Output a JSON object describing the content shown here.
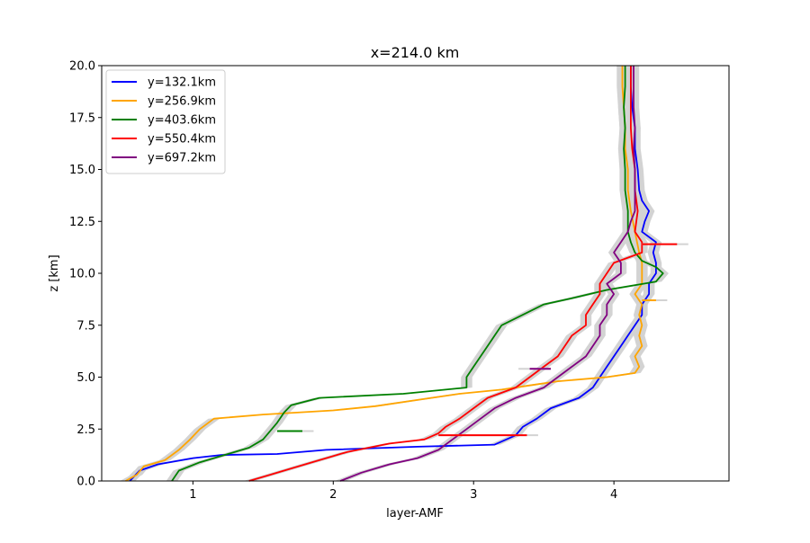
{
  "chart_data": {
    "type": "line",
    "title": "x=214.0 km",
    "xlabel": "layer-AMF",
    "ylabel": "z [km]",
    "xlim": [
      0.35,
      4.82
    ],
    "ylim": [
      0,
      20
    ],
    "xticks": [
      1,
      2,
      3,
      4
    ],
    "xtick_labels": [
      "1",
      "2",
      "3",
      "4"
    ],
    "yticks": [
      0,
      2.5,
      5,
      7.5,
      10,
      12.5,
      15,
      17.5,
      20
    ],
    "ytick_labels": [
      "0.0",
      "2.5",
      "5.0",
      "7.5",
      "10.0",
      "12.5",
      "15.0",
      "17.5",
      "20.0"
    ],
    "grid": false,
    "legend_position": "top-left",
    "band_color": "#d3d3d3",
    "series": [
      {
        "name": "y=132.1km",
        "color": "#0000ff",
        "points": [
          [
            0.55,
            0.0
          ],
          [
            0.62,
            0.5
          ],
          [
            0.75,
            0.8
          ],
          [
            1.0,
            1.1
          ],
          [
            1.2,
            1.25
          ],
          [
            1.6,
            1.3
          ],
          [
            1.95,
            1.5
          ],
          [
            2.6,
            1.65
          ],
          [
            3.15,
            1.75
          ],
          [
            3.3,
            2.2
          ],
          [
            3.35,
            2.6
          ],
          [
            3.45,
            3.0
          ],
          [
            3.55,
            3.5
          ],
          [
            3.75,
            4.0
          ],
          [
            3.85,
            4.5
          ],
          [
            3.9,
            5.0
          ],
          [
            3.95,
            5.5
          ],
          [
            4.0,
            6.0
          ],
          [
            4.05,
            6.5
          ],
          [
            4.1,
            7.0
          ],
          [
            4.15,
            7.5
          ],
          [
            4.2,
            8.0
          ],
          [
            4.2,
            8.5
          ],
          [
            4.25,
            9.0
          ],
          [
            4.25,
            9.5
          ],
          [
            4.3,
            10.0
          ],
          [
            4.3,
            10.5
          ],
          [
            4.28,
            11.0
          ],
          [
            4.3,
            11.5
          ],
          [
            4.2,
            12.0
          ],
          [
            4.22,
            12.5
          ],
          [
            4.25,
            13.0
          ],
          [
            4.2,
            13.5
          ],
          [
            4.18,
            14.0
          ],
          [
            4.17,
            15.0
          ],
          [
            4.15,
            16.0
          ],
          [
            4.15,
            17.0
          ],
          [
            4.13,
            18.0
          ],
          [
            4.12,
            19.0
          ],
          [
            4.12,
            20.0
          ]
        ],
        "band": 0.04
      },
      {
        "name": "y=256.9km",
        "color": "#ffa500",
        "points": [
          [
            0.52,
            0.0
          ],
          [
            0.6,
            0.3
          ],
          [
            0.65,
            0.7
          ],
          [
            0.8,
            1.0
          ],
          [
            0.9,
            1.5
          ],
          [
            0.98,
            2.0
          ],
          [
            1.05,
            2.5
          ],
          [
            1.15,
            3.0
          ],
          [
            1.5,
            3.2
          ],
          [
            2.0,
            3.4
          ],
          [
            2.3,
            3.6
          ],
          [
            2.6,
            3.9
          ],
          [
            2.9,
            4.2
          ],
          [
            3.2,
            4.4
          ],
          [
            3.4,
            4.6
          ],
          [
            3.6,
            4.8
          ],
          [
            3.95,
            5.0
          ],
          [
            4.15,
            5.2
          ],
          [
            4.18,
            5.5
          ],
          [
            4.15,
            6.0
          ],
          [
            4.2,
            6.5
          ],
          [
            4.18,
            7.0
          ],
          [
            4.2,
            7.5
          ],
          [
            4.18,
            8.0
          ],
          [
            4.2,
            8.5
          ],
          [
            4.15,
            9.0
          ],
          [
            4.2,
            9.5
          ],
          [
            4.2,
            10.0
          ],
          [
            4.2,
            10.5
          ],
          [
            4.18,
            11.0
          ],
          [
            4.15,
            12.0
          ],
          [
            4.12,
            13.0
          ],
          [
            4.1,
            14.0
          ],
          [
            4.1,
            15.0
          ],
          [
            4.08,
            16.0
          ],
          [
            4.08,
            17.0
          ],
          [
            4.07,
            18.0
          ],
          [
            4.06,
            19.0
          ],
          [
            4.06,
            20.0
          ]
        ],
        "band": 0.04
      },
      {
        "name": "y=403.6km",
        "color": "#008000",
        "points": [
          [
            0.85,
            0.0
          ],
          [
            0.9,
            0.5
          ],
          [
            1.05,
            0.9
          ],
          [
            1.25,
            1.3
          ],
          [
            1.4,
            1.6
          ],
          [
            1.5,
            2.0
          ],
          [
            1.55,
            2.4
          ],
          [
            1.6,
            2.8
          ],
          [
            1.65,
            3.3
          ],
          [
            1.7,
            3.65
          ],
          [
            1.9,
            4.0
          ],
          [
            2.5,
            4.2
          ],
          [
            2.95,
            4.5
          ],
          [
            2.95,
            5.0
          ],
          [
            3.0,
            5.5
          ],
          [
            3.05,
            6.0
          ],
          [
            3.1,
            6.5
          ],
          [
            3.15,
            7.0
          ],
          [
            3.2,
            7.5
          ],
          [
            3.35,
            8.0
          ],
          [
            3.5,
            8.5
          ],
          [
            3.7,
            8.8
          ],
          [
            3.95,
            9.2
          ],
          [
            4.3,
            9.6
          ],
          [
            4.35,
            10.0
          ],
          [
            4.3,
            10.3
          ],
          [
            4.2,
            10.6
          ],
          [
            4.15,
            11.0
          ],
          [
            4.12,
            11.5
          ],
          [
            4.1,
            12.0
          ],
          [
            4.1,
            13.0
          ],
          [
            4.08,
            14.0
          ],
          [
            4.08,
            15.0
          ],
          [
            4.07,
            16.0
          ],
          [
            4.08,
            17.0
          ],
          [
            4.07,
            18.0
          ],
          [
            4.08,
            19.0
          ],
          [
            4.08,
            20.0
          ]
        ],
        "band": 0.04
      },
      {
        "name": "y=550.4km",
        "color": "#ff0000",
        "points": [
          [
            1.4,
            0.0
          ],
          [
            1.55,
            0.3
          ],
          [
            1.7,
            0.6
          ],
          [
            1.9,
            1.0
          ],
          [
            2.1,
            1.4
          ],
          [
            2.4,
            1.8
          ],
          [
            2.65,
            2.0
          ],
          [
            2.75,
            2.3
          ],
          [
            2.8,
            2.6
          ],
          [
            2.9,
            3.0
          ],
          [
            3.0,
            3.5
          ],
          [
            3.1,
            4.0
          ],
          [
            3.3,
            4.5
          ],
          [
            3.4,
            5.0
          ],
          [
            3.5,
            5.5
          ],
          [
            3.6,
            6.0
          ],
          [
            3.65,
            6.5
          ],
          [
            3.7,
            7.0
          ],
          [
            3.8,
            7.5
          ],
          [
            3.8,
            8.0
          ],
          [
            3.85,
            8.5
          ],
          [
            3.9,
            9.0
          ],
          [
            3.9,
            9.5
          ],
          [
            3.95,
            10.0
          ],
          [
            4.0,
            10.5
          ],
          [
            4.2,
            11.0
          ],
          [
            4.2,
            11.5
          ],
          [
            4.15,
            12.0
          ],
          [
            4.17,
            13.0
          ],
          [
            4.15,
            14.0
          ],
          [
            4.15,
            15.0
          ],
          [
            4.13,
            16.0
          ],
          [
            4.12,
            17.0
          ],
          [
            4.12,
            18.0
          ],
          [
            4.12,
            19.0
          ],
          [
            4.12,
            20.0
          ]
        ],
        "band": 0.04
      },
      {
        "name": "y=697.2km",
        "color": "#800080",
        "points": [
          [
            2.05,
            0.0
          ],
          [
            2.2,
            0.4
          ],
          [
            2.4,
            0.8
          ],
          [
            2.6,
            1.1
          ],
          [
            2.75,
            1.5
          ],
          [
            2.85,
            2.0
          ],
          [
            2.95,
            2.5
          ],
          [
            3.05,
            3.0
          ],
          [
            3.15,
            3.5
          ],
          [
            3.3,
            4.0
          ],
          [
            3.5,
            4.5
          ],
          [
            3.6,
            5.0
          ],
          [
            3.7,
            5.5
          ],
          [
            3.8,
            6.0
          ],
          [
            3.85,
            6.5
          ],
          [
            3.9,
            7.0
          ],
          [
            3.9,
            7.5
          ],
          [
            3.95,
            8.0
          ],
          [
            3.95,
            8.5
          ],
          [
            4.0,
            9.0
          ],
          [
            3.95,
            9.5
          ],
          [
            4.05,
            10.0
          ],
          [
            4.05,
            10.5
          ],
          [
            4.0,
            11.0
          ],
          [
            4.05,
            11.5
          ],
          [
            4.1,
            12.0
          ],
          [
            4.12,
            12.5
          ],
          [
            4.15,
            13.0
          ],
          [
            4.15,
            14.0
          ],
          [
            4.15,
            15.0
          ],
          [
            4.14,
            16.0
          ],
          [
            4.15,
            17.0
          ],
          [
            4.14,
            18.0
          ],
          [
            4.14,
            19.0
          ],
          [
            4.14,
            20.0
          ]
        ],
        "band": 0.04
      }
    ],
    "spikes": [
      {
        "series": "y=550.4km",
        "z": 2.2,
        "x_from": 2.75,
        "x_to": 3.38
      },
      {
        "series": "y=550.4km",
        "z": 11.4,
        "x_from": 4.2,
        "x_to": 4.45
      },
      {
        "series": "y=403.6km",
        "z": 2.4,
        "x_from": 1.6,
        "x_to": 1.78
      },
      {
        "series": "y=697.2km",
        "z": 5.4,
        "x_from": 3.55,
        "x_to": 3.4
      },
      {
        "series": "y=256.9km",
        "z": 8.7,
        "x_from": 4.2,
        "x_to": 4.3
      }
    ]
  }
}
